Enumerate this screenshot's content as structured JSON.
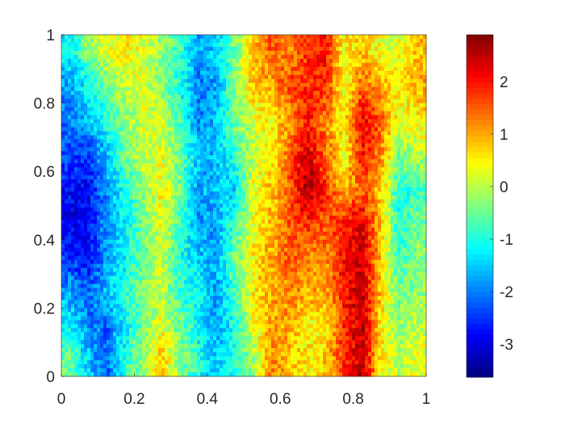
{
  "chart_data": {
    "type": "heatmap",
    "title": "",
    "xlabel": "",
    "ylabel": "",
    "xlim": [
      0,
      1
    ],
    "ylim": [
      0,
      1
    ],
    "xticks": [
      "0",
      "0.2",
      "0.4",
      "0.6",
      "0.8",
      "1"
    ],
    "yticks": [
      "0",
      "0.2",
      "0.4",
      "0.6",
      "0.8",
      "1"
    ],
    "colormap": "jet",
    "colorbar": {
      "position": "right",
      "clim": [
        -3.63,
        2.89
      ],
      "ticks": [
        "-3",
        "-2",
        "-1",
        "0",
        "1",
        "2"
      ]
    },
    "grid_x_centers": [
      0.025,
      0.075,
      0.125,
      0.175,
      0.225,
      0.275,
      0.325,
      0.375,
      0.425,
      0.475,
      0.525,
      0.575,
      0.625,
      0.675,
      0.725,
      0.775,
      0.825,
      0.875,
      0.925,
      0.975
    ],
    "grid_y_centers_top_to_bottom": [
      0.95,
      0.85,
      0.75,
      0.65,
      0.55,
      0.45,
      0.35,
      0.25,
      0.15,
      0.05
    ],
    "values": [
      [
        -1.2,
        -0.3,
        0.3,
        0.5,
        0.3,
        -0.3,
        -0.8,
        -1.8,
        -1.5,
        -0.5,
        0.8,
        1.5,
        1.2,
        1.8,
        2.0,
        0.5,
        0.8,
        0.3,
        0.3,
        0.8
      ],
      [
        -1.8,
        -1.2,
        -0.5,
        0,
        0.3,
        -0.5,
        -1.0,
        -2.0,
        -1.8,
        -0.3,
        0.8,
        1.0,
        1.6,
        1.8,
        1.8,
        0.3,
        1.5,
        1.0,
        0.5,
        1.0
      ],
      [
        -2.0,
        -1.5,
        -1.0,
        -0.3,
        0.2,
        0.2,
        -0.8,
        -2.0,
        -1.5,
        -0.5,
        0.2,
        0.5,
        1.0,
        2.0,
        1.2,
        0.5,
        2.2,
        1.5,
        0.2,
        0.5
      ],
      [
        -2.3,
        -2.5,
        -1.5,
        -0.5,
        0,
        0.3,
        -0.5,
        -1.5,
        -1.7,
        -0.8,
        0,
        0.5,
        1.5,
        2.3,
        1.5,
        0.3,
        2.0,
        1.2,
        -0.5,
        0
      ],
      [
        -2.8,
        -2.8,
        -1.8,
        -1.0,
        -0.3,
        0.5,
        -0.5,
        -1.8,
        -1.5,
        -1.5,
        0.3,
        0.8,
        1.5,
        2.7,
        1.8,
        0.8,
        1.5,
        0.8,
        -1.0,
        -0.8
      ],
      [
        -3.0,
        -2.8,
        -1.8,
        -1.2,
        -0.5,
        0.3,
        -0.8,
        -1.8,
        -1.8,
        -0.8,
        0.3,
        0.8,
        1.5,
        1.8,
        1.5,
        1.8,
        2.3,
        0.8,
        -1.0,
        -0.5
      ],
      [
        -2.5,
        -2.8,
        -1.8,
        -1.2,
        -0.5,
        0.2,
        -1.0,
        -1.5,
        -1.7,
        -0.5,
        0.5,
        1.0,
        1.5,
        1.2,
        1.2,
        2.0,
        2.5,
        0.8,
        -0.8,
        -0.3
      ],
      [
        -1.8,
        -2.2,
        -1.5,
        -1.0,
        -0.3,
        0,
        -0.8,
        -1.2,
        -1.8,
        -0.8,
        0.5,
        1.0,
        1.2,
        1.0,
        1.0,
        2.0,
        2.5,
        0.8,
        -0.5,
        -0.2
      ],
      [
        -1.2,
        -2.0,
        -2.2,
        -1.2,
        -0.5,
        0.3,
        -0.5,
        -1.2,
        -1.8,
        -1.0,
        0.3,
        1.0,
        1.0,
        0.5,
        0.5,
        1.8,
        2.5,
        0.6,
        -0.3,
        0
      ],
      [
        -0.5,
        -1.5,
        -2.2,
        -1.0,
        -0.2,
        0.8,
        -0.3,
        -1.0,
        -1.5,
        -1.0,
        -0.2,
        1.2,
        0.8,
        0.5,
        0.8,
        1.8,
        2.5,
        0.5,
        0,
        0.3
      ]
    ]
  }
}
